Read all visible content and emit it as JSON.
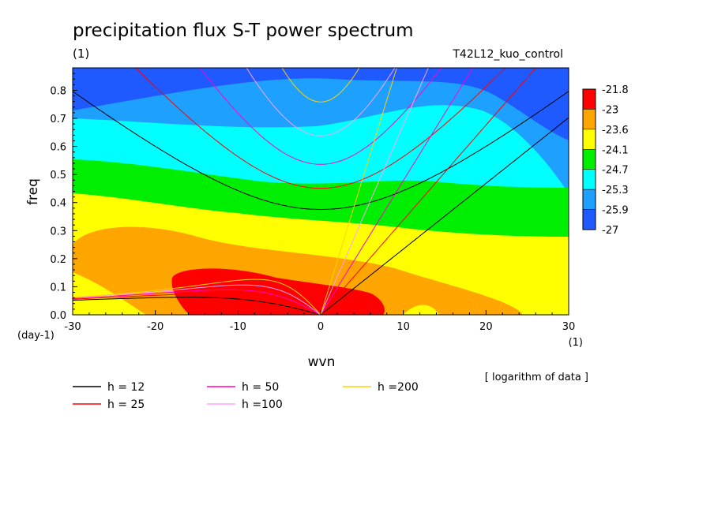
{
  "chart_data": {
    "type": "heatmap",
    "title": "precipitation flux S-T power spectrum",
    "title_unit": "(1)",
    "subtitle_right": "T42L12_kuo_control",
    "xlabel": "wvn",
    "ylabel": "freq",
    "x_unit": "(1)",
    "y_unit": "(day-1)",
    "note": "[ logarithm of data ]",
    "xlim": [
      -30,
      30
    ],
    "ylim": [
      0,
      0.88
    ],
    "x_ticks": [
      -30,
      -20,
      -10,
      0,
      10,
      20,
      30
    ],
    "y_ticks": [
      0.0,
      0.1,
      0.2,
      0.3,
      0.4,
      0.5,
      0.6,
      0.7,
      0.8
    ],
    "color_levels": [
      "-21.8",
      "-23",
      "-23.6",
      "-24.1",
      "-24.7",
      "-25.3",
      "-25.9",
      "-27"
    ],
    "band_colors": [
      "#ff0000",
      "#ffa500",
      "#ffff00",
      "#00ee00",
      "#00ffff",
      "#1ea0ff",
      "#1e5aff"
    ],
    "dispersion_curves": [
      {
        "label": "h = 12",
        "h": 12,
        "color": "#000000"
      },
      {
        "label": "h = 25",
        "h": 25,
        "color": "#ff0000"
      },
      {
        "label": "h = 50",
        "h": 50,
        "color": "#ff00cc"
      },
      {
        "label": "h =100",
        "h": 100,
        "color": "#ffa0ff"
      },
      {
        "label": "h =200",
        "h": 200,
        "color": "#ffd200"
      }
    ]
  }
}
